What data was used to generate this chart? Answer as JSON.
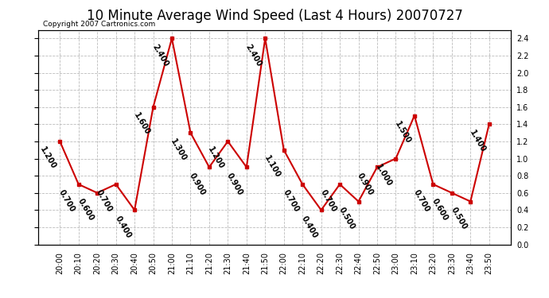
{
  "title": "10 Minute Average Wind Speed (Last 4 Hours) 20070727",
  "copyright": "Copyright 2007 Cartronics.com",
  "times": [
    "20:00",
    "20:10",
    "20:20",
    "20:30",
    "20:40",
    "20:50",
    "21:00",
    "21:10",
    "21:20",
    "21:30",
    "21:40",
    "21:50",
    "22:00",
    "22:10",
    "22:20",
    "22:30",
    "22:40",
    "22:50",
    "23:00",
    "23:10",
    "23:20",
    "23:30",
    "23:40",
    "23:50"
  ],
  "values": [
    1.2,
    0.7,
    0.6,
    0.7,
    0.4,
    1.6,
    2.4,
    1.3,
    0.9,
    1.2,
    0.9,
    2.4,
    1.1,
    0.7,
    0.4,
    0.7,
    0.5,
    0.9,
    1.0,
    1.5,
    0.7,
    0.6,
    0.5,
    1.4
  ],
  "line_color": "#cc0000",
  "marker_color": "#cc0000",
  "bg_color": "#ffffff",
  "grid_color": "#bbbbbb",
  "title_fontsize": 12,
  "label_fontsize": 7,
  "annotation_fontsize": 7,
  "ylim": [
    0.0,
    2.5
  ],
  "yticks": [
    0.0,
    0.2,
    0.4,
    0.6,
    0.8,
    1.0,
    1.2,
    1.4,
    1.6,
    1.8,
    2.0,
    2.2,
    2.4
  ]
}
